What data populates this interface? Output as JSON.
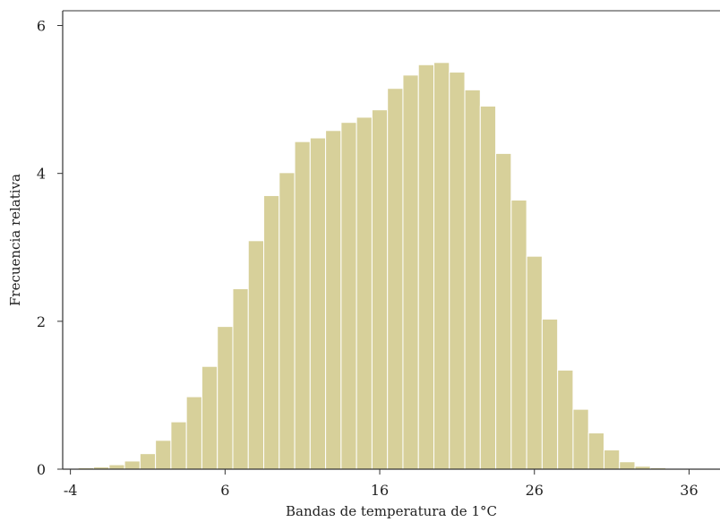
{
  "chart_data": {
    "type": "bar",
    "title": "",
    "xlabel": "Bandas de temperatura de 1°C",
    "ylabel": "Frecuencia relativa",
    "xlim": [
      -4.5,
      38
    ],
    "ylim": [
      0,
      6.2
    ],
    "xticks": [
      -4,
      6,
      16,
      26,
      36
    ],
    "yticks": [
      0,
      2,
      4,
      6
    ],
    "bar_color": "#d7d09a",
    "bar_edge_color": "#ffffff",
    "bins": [
      {
        "x": -4.5,
        "value": 0.01
      },
      {
        "x": -3.5,
        "value": 0.02
      },
      {
        "x": -2.5,
        "value": 0.03
      },
      {
        "x": -1.5,
        "value": 0.06
      },
      {
        "x": -0.5,
        "value": 0.11
      },
      {
        "x": 0.5,
        "value": 0.21
      },
      {
        "x": 1.5,
        "value": 0.39
      },
      {
        "x": 2.5,
        "value": 0.64
      },
      {
        "x": 3.5,
        "value": 0.98
      },
      {
        "x": 4.5,
        "value": 1.39
      },
      {
        "x": 5.5,
        "value": 1.93
      },
      {
        "x": 6.5,
        "value": 2.44
      },
      {
        "x": 7.5,
        "value": 3.09
      },
      {
        "x": 8.5,
        "value": 3.7
      },
      {
        "x": 9.5,
        "value": 4.01
      },
      {
        "x": 10.5,
        "value": 4.43
      },
      {
        "x": 11.5,
        "value": 4.48
      },
      {
        "x": 12.5,
        "value": 4.58
      },
      {
        "x": 13.5,
        "value": 4.69
      },
      {
        "x": 14.5,
        "value": 4.76
      },
      {
        "x": 15.5,
        "value": 4.86
      },
      {
        "x": 16.5,
        "value": 5.15
      },
      {
        "x": 17.5,
        "value": 5.33
      },
      {
        "x": 18.5,
        "value": 5.47
      },
      {
        "x": 19.5,
        "value": 5.5
      },
      {
        "x": 20.5,
        "value": 5.37
      },
      {
        "x": 21.5,
        "value": 5.13
      },
      {
        "x": 22.5,
        "value": 4.91
      },
      {
        "x": 23.5,
        "value": 4.27
      },
      {
        "x": 24.5,
        "value": 3.64
      },
      {
        "x": 25.5,
        "value": 2.88
      },
      {
        "x": 26.5,
        "value": 2.03
      },
      {
        "x": 27.5,
        "value": 1.34
      },
      {
        "x": 28.5,
        "value": 0.81
      },
      {
        "x": 29.5,
        "value": 0.49
      },
      {
        "x": 30.5,
        "value": 0.26
      },
      {
        "x": 31.5,
        "value": 0.1
      },
      {
        "x": 32.5,
        "value": 0.04
      },
      {
        "x": 33.5,
        "value": 0.02
      },
      {
        "x": 34.5,
        "value": 0.01
      },
      {
        "x": 35.5,
        "value": 0.01
      },
      {
        "x": 36.5,
        "value": 0.01
      }
    ]
  }
}
